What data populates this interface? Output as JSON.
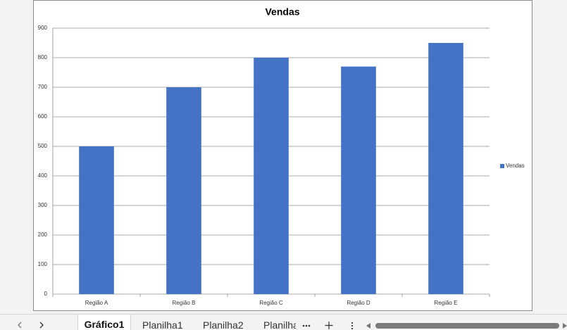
{
  "chart_data": {
    "type": "bar",
    "title": "Vendas",
    "categories": [
      "Região A",
      "Região B",
      "Região C",
      "Região D",
      "Região E"
    ],
    "series": [
      {
        "name": "Vendas",
        "color": "#4472c4",
        "values": [
          500,
          700,
          800,
          770,
          850
        ]
      }
    ],
    "ylim": [
      0,
      900
    ],
    "yticks": [
      0,
      100,
      200,
      300,
      400,
      500,
      600,
      700,
      800,
      900
    ],
    "grid": true,
    "legend": "right"
  },
  "sheet_tabs": [
    "Gráfico1",
    "Planilha1",
    "Planilha2",
    "Planilha"
  ]
}
